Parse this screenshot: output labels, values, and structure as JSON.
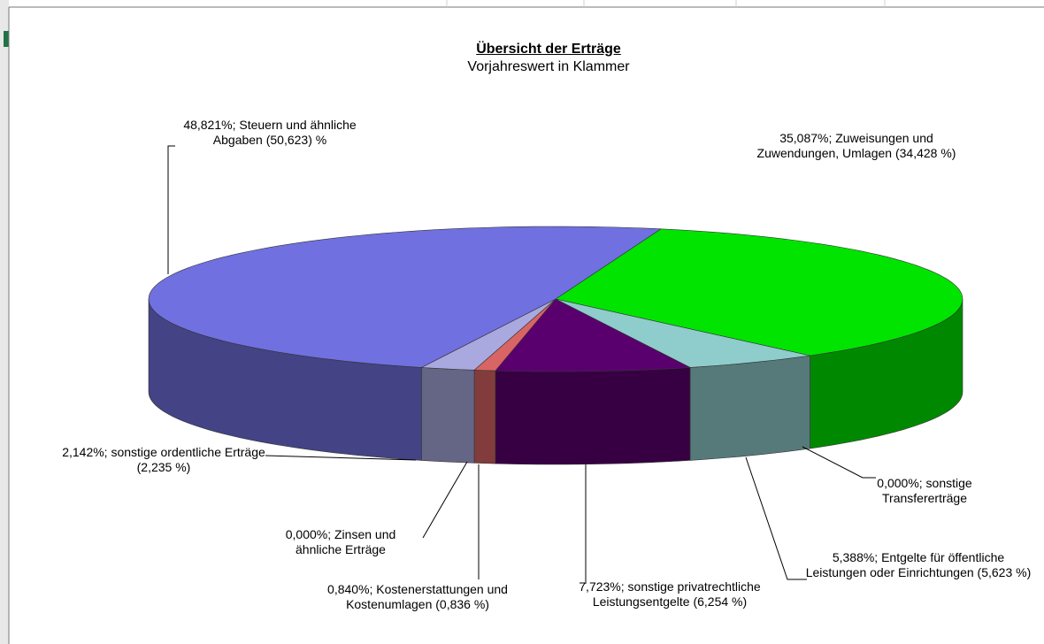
{
  "chart_data": {
    "type": "pie",
    "title": "Übersicht der Erträge",
    "subtitle": "Vorjahreswert in Klammer",
    "values": [
      35.087,
      0.0,
      5.388,
      7.723,
      0.84,
      0.0,
      2.142,
      48.821
    ],
    "value_labels": [
      "35,087%; Zuweisungen und Zuwendungen, Umlagen (34,428 %)",
      "0,000%; sonstige Transfererträge",
      "5,388%; Entgelte für öffentliche Leistungen oder Einrichtungen (5,623 %)",
      "7,723%; sonstige privatrechtliche Leistungsentgelte (6,254 %)",
      "0,840%; Kostenerstattungen und Kostenumlagen (0,836 %)",
      "0,000%; Zinsen und ähnliche Erträge",
      "2,142%; sonstige ordentliche Erträge (2,235 %)",
      "48,821%; Steuern und ähnliche Abgaben  (50,623) %"
    ],
    "colors": [
      "#00e400",
      "#a0a0a0",
      "#8fcccc",
      "#5a006e",
      "#d96464",
      "#c0c0c0",
      "#a9a9e0",
      "#7070e0"
    ]
  }
}
